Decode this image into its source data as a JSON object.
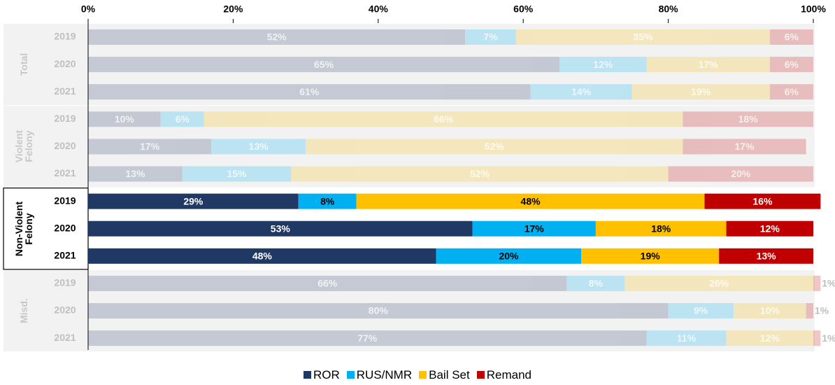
{
  "chart_data": {
    "type": "stacked-bar",
    "orientation": "horizontal",
    "xlim": [
      0,
      100
    ],
    "xticks": [
      {
        "value": 0,
        "label": "0%"
      },
      {
        "value": 20,
        "label": "20%"
      },
      {
        "value": 40,
        "label": "40%"
      },
      {
        "value": 60,
        "label": "60%"
      },
      {
        "value": 80,
        "label": "80%"
      },
      {
        "value": 100,
        "label": "100%"
      }
    ],
    "groups": [
      {
        "name": "Total",
        "highlighted": false,
        "categories": [
          "2019",
          "2020",
          "2021"
        ]
      },
      {
        "name": "Violent Felony",
        "highlighted": false,
        "categories": [
          "2019",
          "2020",
          "2021"
        ]
      },
      {
        "name": "Non-Violent Felony",
        "highlighted": true,
        "categories": [
          "2019",
          "2020",
          "2021"
        ]
      },
      {
        "name": "Misd.",
        "highlighted": false,
        "categories": [
          "2019",
          "2020",
          "2021"
        ]
      }
    ],
    "series": [
      {
        "name": "ROR",
        "color": "#203864",
        "values": [
          52,
          65,
          61,
          10,
          17,
          13,
          29,
          53,
          48,
          66,
          80,
          77
        ],
        "value_labels": [
          "52%",
          "65%",
          "61%",
          "10%",
          "17%",
          "13%",
          "29%",
          "53%",
          "48%",
          "66%",
          "80%",
          "77%"
        ]
      },
      {
        "name": "RUS/NMR",
        "color": "#00b0f0",
        "values": [
          7,
          12,
          14,
          6,
          13,
          15,
          8,
          17,
          20,
          8,
          9,
          11
        ],
        "value_labels": [
          "7%",
          "12%",
          "14%",
          "6%",
          "13%",
          "15%",
          "8%",
          "17%",
          "20%",
          "8%",
          "9%",
          "11%"
        ]
      },
      {
        "name": "Bail Set",
        "color": "#ffc000",
        "values": [
          35,
          17,
          19,
          66,
          52,
          52,
          48,
          18,
          19,
          26,
          10,
          12
        ],
        "value_labels": [
          "35%",
          "17%",
          "19%",
          "66%",
          "52%",
          "52%",
          "48%",
          "18%",
          "19%",
          "26%",
          "10%",
          "12%"
        ]
      },
      {
        "name": "Remand",
        "color": "#c00000",
        "values": [
          6,
          6,
          6,
          18,
          17,
          20,
          16,
          12,
          13,
          1,
          1,
          1
        ],
        "value_labels": [
          "6%",
          "6%",
          "6%",
          "18%",
          "17%",
          "20%",
          "16%",
          "12%",
          "13%",
          "1%",
          "1%",
          "1%"
        ]
      }
    ],
    "legend": "bottom"
  }
}
